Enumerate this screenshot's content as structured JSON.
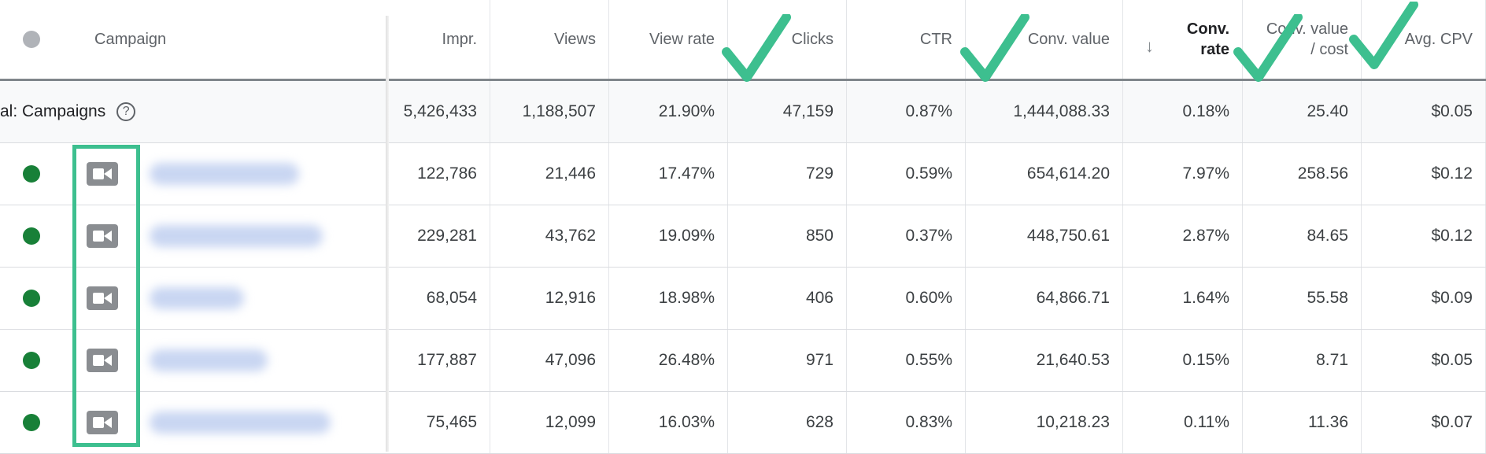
{
  "header": {
    "campaign": "Campaign",
    "impr": "Impr.",
    "views": "Views",
    "view_rate": "View rate",
    "clicks": "Clicks",
    "ctr": "CTR",
    "conv_value": "Conv. value",
    "conv_rate_line1": "Conv.",
    "conv_rate_line2": "rate",
    "conv_value_cost_line1": "Conv. value",
    "conv_value_cost_line2": "/ cost",
    "avg_cpv": "Avg. CPV",
    "sort_icon": "arrow-down-icon"
  },
  "total": {
    "label": "al: Campaigns",
    "help_icon": "?",
    "impr": "5,426,433",
    "views": "1,188,507",
    "view_rate": "21.90%",
    "clicks": "47,159",
    "ctr": "0.87%",
    "conv_value": "1,444,088.33",
    "conv_rate": "0.18%",
    "conv_value_cost": "25.40",
    "avg_cpv": "$0.05"
  },
  "rows": [
    {
      "impr": "122,786",
      "views": "21,446",
      "view_rate": "17.47%",
      "clicks": "729",
      "ctr": "0.59%",
      "conv_value": "654,614.20",
      "conv_rate": "7.97%",
      "conv_value_cost": "258.56",
      "avg_cpv": "$0.12"
    },
    {
      "impr": "229,281",
      "views": "43,762",
      "view_rate": "19.09%",
      "clicks": "850",
      "ctr": "0.37%",
      "conv_value": "448,750.61",
      "conv_rate": "2.87%",
      "conv_value_cost": "84.65",
      "avg_cpv": "$0.12"
    },
    {
      "impr": "68,054",
      "views": "12,916",
      "view_rate": "18.98%",
      "clicks": "406",
      "ctr": "0.60%",
      "conv_value": "64,866.71",
      "conv_rate": "1.64%",
      "conv_value_cost": "55.58",
      "avg_cpv": "$0.09"
    },
    {
      "impr": "177,887",
      "views": "47,096",
      "view_rate": "26.48%",
      "clicks": "971",
      "ctr": "0.55%",
      "conv_value": "21,640.53",
      "conv_rate": "0.15%",
      "conv_value_cost": "8.71",
      "avg_cpv": "$0.05"
    },
    {
      "impr": "75,465",
      "views": "12,099",
      "view_rate": "16.03%",
      "clicks": "628",
      "ctr": "0.83%",
      "conv_value": "10,218.23",
      "conv_rate": "0.11%",
      "conv_value_cost": "11.36",
      "avg_cpv": "$0.07"
    }
  ],
  "colors": {
    "status_enabled": "#188038",
    "annotation": "#3dbf8f"
  },
  "icons": {
    "status": "status-dot-icon",
    "type": "video-campaign-icon",
    "annotation": "checkmark-icon"
  }
}
